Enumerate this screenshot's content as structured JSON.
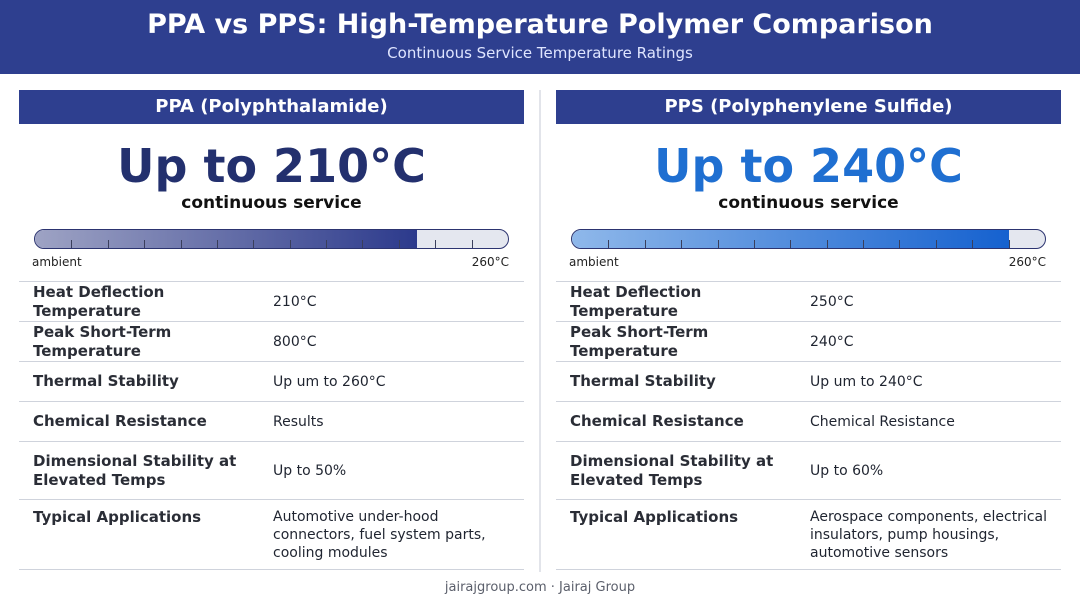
{
  "header": {
    "title": "PPA vs PPS: High-Temperature Polymer Comparison",
    "subtitle": "Continuous Service Temperature Ratings"
  },
  "gauge_scale": {
    "min_label": "ambient",
    "max_label": "260°C",
    "min": 0,
    "max": 260,
    "ticks": 13
  },
  "panels": [
    {
      "name": "PPA (Polyphthalamide)",
      "headline": "Up to 210°C",
      "headline_sub": "continuous service",
      "gauge_value": 210,
      "accent": "#23306e",
      "rows": [
        {
          "label": "Heat Deflection Temperature",
          "value": "210°C"
        },
        {
          "label": "Peak Short-Term Temperature",
          "value": "800°C"
        },
        {
          "label": "Thermal Stability",
          "value": "Up um to 260°C"
        },
        {
          "label": "Chemical Resistance",
          "value": "Results"
        },
        {
          "label": "Dimensional Stability at Elevated Temps",
          "value": "Up to 50%"
        },
        {
          "label": "Typical Applications",
          "value": "Automotive under-hood connectors, fuel system parts, cooling modules"
        }
      ]
    },
    {
      "name": "PPS (Polyphenylene Sulfide)",
      "headline": "Up to 240°C",
      "headline_sub": "continuous service",
      "gauge_value": 240,
      "accent": "#1f6fd1",
      "rows": [
        {
          "label": "Heat Deflection Temperature",
          "value": "250°C"
        },
        {
          "label": "Peak Short-Term Temperature",
          "value": "240°C"
        },
        {
          "label": "Thermal Stability",
          "value": "Up um to 240°C"
        },
        {
          "label": "Chemical Resistance",
          "value": "Chemical Resistance"
        },
        {
          "label": "Dimensional Stability at Elevated Temps",
          "value": "Up to 60%"
        },
        {
          "label": "Typical Applications",
          "value": "Aerospace components, electrical insulators, pump housings, automotive sensors"
        }
      ]
    }
  ],
  "footer": "jairajgroup.com · Jairaj Group"
}
